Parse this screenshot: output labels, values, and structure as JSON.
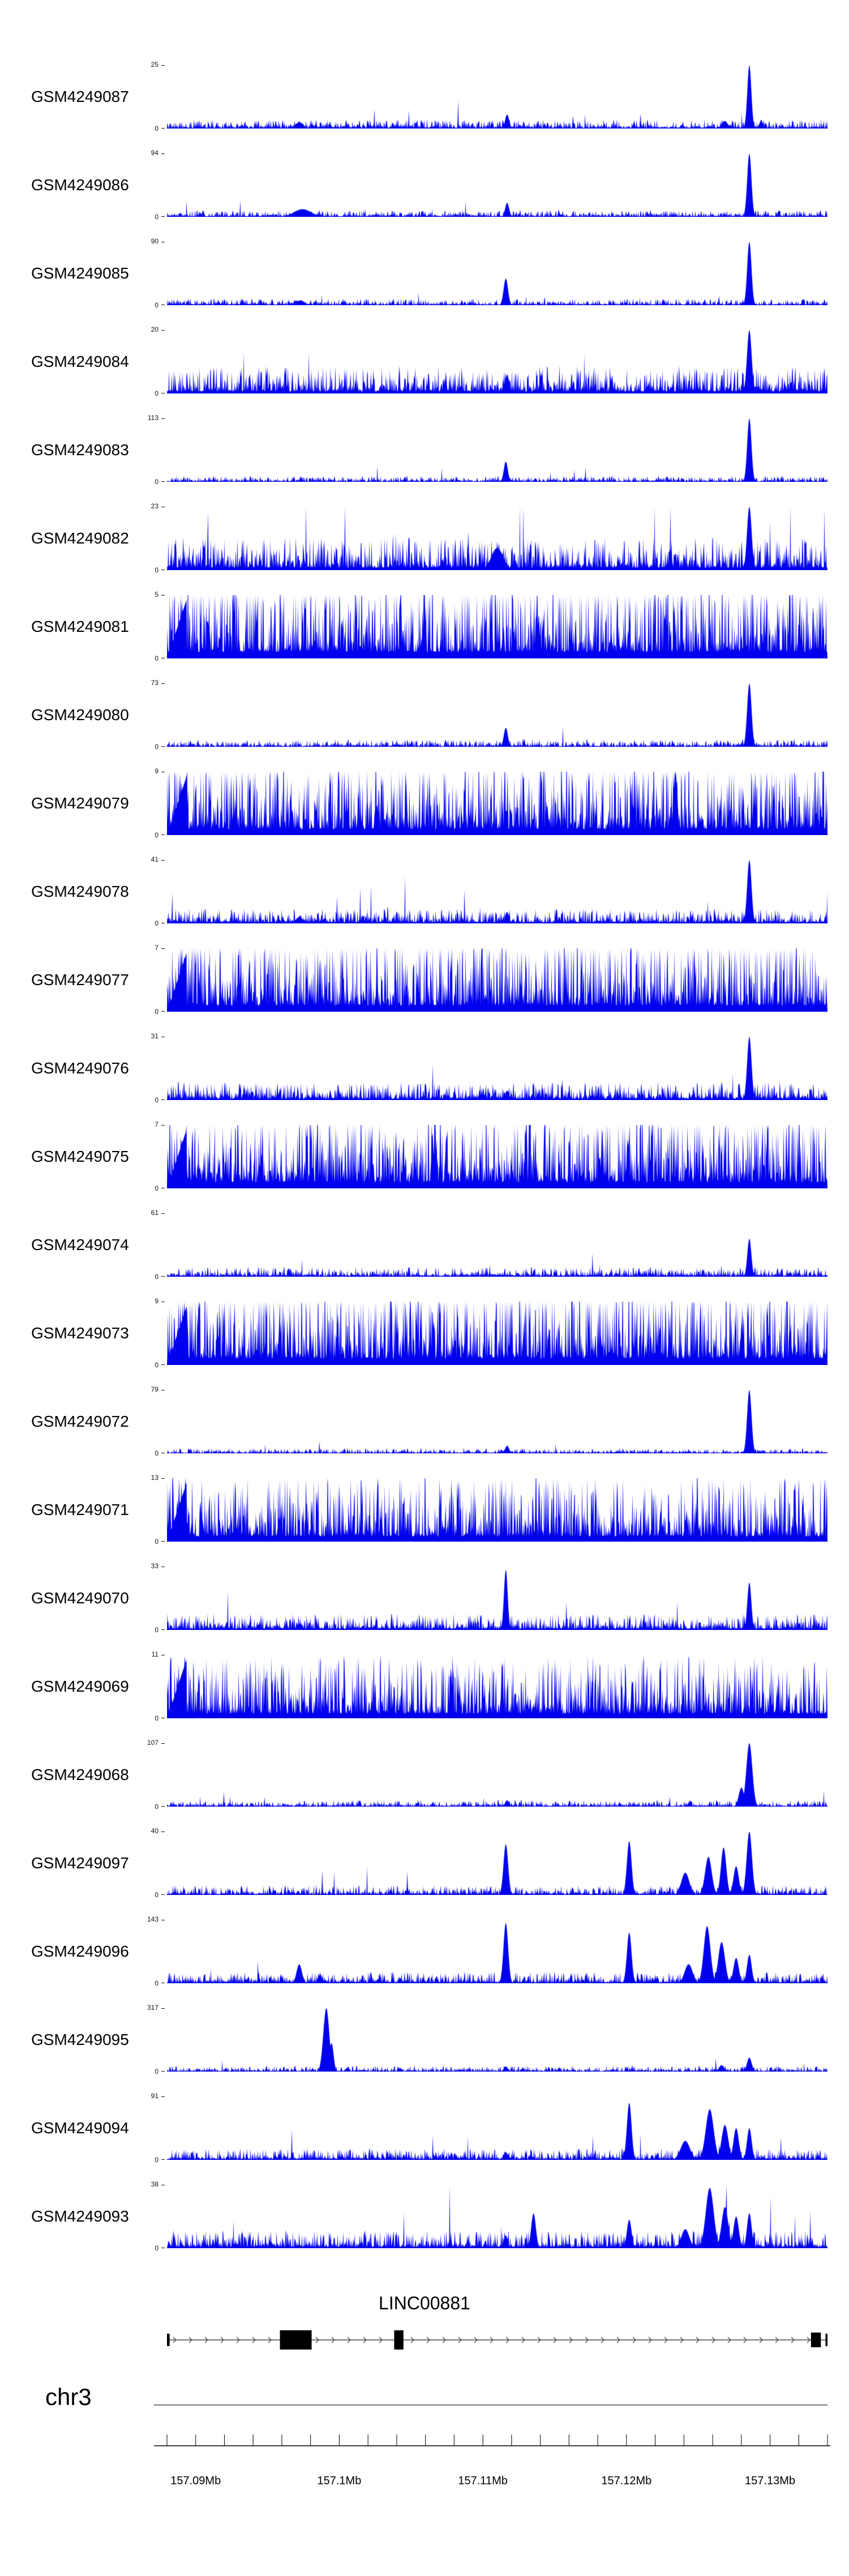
{
  "figure": {
    "background": "#ffffff",
    "signal_color": "#0000ee",
    "gene_color": "#000000",
    "gene_line_color": "#4a4a4a",
    "axis_color": "#000000"
  },
  "chart_data": {
    "type": "area",
    "title": "",
    "description": "Genome browser multi-sample coverage tracks over chr3:157.088-157.134Mb around LINC00881. Each track is a filled blue coverage signal with its own y-axis maximum; peaks are given as fractional x position (0-1 across the region), relative height (0-1 of track max) and gaussian width.",
    "region": {
      "chrom": "chr3",
      "start_mb": 157.088,
      "end_mb": 157.134,
      "unit": "Mb"
    },
    "gene": {
      "title": "LINC00881",
      "strand": "+",
      "exons": [
        {
          "x0": 0.0,
          "x1": 0.004,
          "h": 22
        },
        {
          "x0": 0.171,
          "x1": 0.219,
          "h": 34
        },
        {
          "x0": 0.344,
          "x1": 0.358,
          "h": 34
        },
        {
          "x0": 0.975,
          "x1": 0.99,
          "h": 26
        },
        {
          "x0": 0.997,
          "x1": 1.0,
          "h": 22
        }
      ]
    },
    "ruler": {
      "minor_step_mb": 0.002,
      "majors": [
        {
          "mb": 157.09,
          "label": "157.09Mb"
        },
        {
          "mb": 157.1,
          "label": "157.1Mb"
        },
        {
          "mb": 157.11,
          "label": "157.11Mb"
        },
        {
          "mb": 157.12,
          "label": "157.12Mb"
        },
        {
          "mb": 157.13,
          "label": "157.13Mb"
        }
      ]
    },
    "tracks": [
      {
        "name": "GSM4249087",
        "ymax": 25,
        "ymin": 0,
        "base": 0.055,
        "ramp": 0,
        "peaks": [
          {
            "x": 0.2,
            "h": 0.1,
            "w": 0.006
          },
          {
            "x": 0.515,
            "h": 0.22,
            "w": 0.003
          },
          {
            "x": 0.845,
            "h": 0.12,
            "w": 0.004
          },
          {
            "x": 0.882,
            "h": 1.0,
            "w": 0.003
          },
          {
            "x": 0.9,
            "h": 0.12,
            "w": 0.003
          }
        ]
      },
      {
        "name": "GSM4249086",
        "ymax": 94,
        "ymin": 0,
        "base": 0.04,
        "ramp": 0,
        "peaks": [
          {
            "x": 0.205,
            "h": 0.12,
            "w": 0.013
          },
          {
            "x": 0.515,
            "h": 0.22,
            "w": 0.003
          },
          {
            "x": 0.882,
            "h": 1.0,
            "w": 0.0032
          }
        ]
      },
      {
        "name": "GSM4249085",
        "ymax": 90,
        "ymin": 0,
        "base": 0.04,
        "ramp": 0,
        "peaks": [
          {
            "x": 0.2,
            "h": 0.07,
            "w": 0.008
          },
          {
            "x": 0.513,
            "h": 0.42,
            "w": 0.0033
          },
          {
            "x": 0.882,
            "h": 1.0,
            "w": 0.0032
          }
        ]
      },
      {
        "name": "GSM4249084",
        "ymax": 20,
        "ymin": 0,
        "base": 0.17,
        "ramp": 0,
        "peaks": [
          {
            "x": 0.515,
            "h": 0.3,
            "w": 0.003
          },
          {
            "x": 0.882,
            "h": 1.0,
            "w": 0.0035
          }
        ]
      },
      {
        "name": "GSM4249083",
        "ymax": 113,
        "ymin": 0,
        "base": 0.035,
        "ramp": 0,
        "peaks": [
          {
            "x": 0.513,
            "h": 0.32,
            "w": 0.003
          },
          {
            "x": 0.882,
            "h": 1.0,
            "w": 0.0032
          }
        ]
      },
      {
        "name": "GSM4249082",
        "ymax": 23,
        "ymin": 0,
        "base": 0.2,
        "ramp": 0,
        "peaks": [
          {
            "x": 0.5,
            "h": 0.35,
            "w": 0.009
          },
          {
            "x": 0.882,
            "h": 1.0,
            "w": 0.0035
          }
        ]
      },
      {
        "name": "GSM4249081",
        "ymax": 5,
        "ymin": 0,
        "base": 0.52,
        "ramp": 1,
        "peaks": []
      },
      {
        "name": "GSM4249080",
        "ymax": 73,
        "ymin": 0,
        "base": 0.045,
        "ramp": 0,
        "peaks": [
          {
            "x": 0.513,
            "h": 0.3,
            "w": 0.003
          },
          {
            "x": 0.882,
            "h": 1.0,
            "w": 0.0033
          }
        ]
      },
      {
        "name": "GSM4249079",
        "ymax": 9,
        "ymin": 0,
        "base": 0.48,
        "ramp": 1,
        "peaks": [
          {
            "x": 0.77,
            "h": 1.0,
            "w": 0.003
          }
        ]
      },
      {
        "name": "GSM4249078",
        "ymax": 41,
        "ymin": 0,
        "base": 0.09,
        "ramp": 0,
        "peaks": [
          {
            "x": 0.2,
            "h": 0.1,
            "w": 0.005
          },
          {
            "x": 0.515,
            "h": 0.18,
            "w": 0.003
          },
          {
            "x": 0.882,
            "h": 1.0,
            "w": 0.0033
          }
        ]
      },
      {
        "name": "GSM4249077",
        "ymax": 7,
        "ymin": 0,
        "base": 0.5,
        "ramp": 1,
        "peaks": []
      },
      {
        "name": "GSM4249076",
        "ymax": 31,
        "ymin": 0,
        "base": 0.11,
        "ramp": 0,
        "peaks": [
          {
            "x": 0.515,
            "h": 0.15,
            "w": 0.003
          },
          {
            "x": 0.882,
            "h": 1.0,
            "w": 0.0033
          }
        ]
      },
      {
        "name": "GSM4249075",
        "ymax": 7,
        "ymin": 0,
        "base": 0.5,
        "ramp": 1,
        "peaks": []
      },
      {
        "name": "GSM4249074",
        "ymax": 61,
        "ymin": 0,
        "base": 0.06,
        "ramp": 0,
        "peaks": [
          {
            "x": 0.882,
            "h": 0.6,
            "w": 0.003
          }
        ]
      },
      {
        "name": "GSM4249073",
        "ymax": 9,
        "ymin": 0,
        "base": 0.53,
        "ramp": 1,
        "peaks": []
      },
      {
        "name": "GSM4249072",
        "ymax": 79,
        "ymin": 0,
        "base": 0.03,
        "ramp": 0,
        "peaks": [
          {
            "x": 0.515,
            "h": 0.12,
            "w": 0.003
          },
          {
            "x": 0.882,
            "h": 1.0,
            "w": 0.0033
          }
        ]
      },
      {
        "name": "GSM4249071",
        "ymax": 13,
        "ymin": 0,
        "base": 0.42,
        "ramp": 1,
        "peaks": []
      },
      {
        "name": "GSM4249070",
        "ymax": 33,
        "ymin": 0,
        "base": 0.1,
        "ramp": 0,
        "peaks": [
          {
            "x": 0.2,
            "h": 0.1,
            "w": 0.004
          },
          {
            "x": 0.513,
            "h": 0.95,
            "w": 0.0028
          },
          {
            "x": 0.882,
            "h": 0.75,
            "w": 0.003
          }
        ]
      },
      {
        "name": "GSM4249069",
        "ymax": 11,
        "ymin": 0,
        "base": 0.38,
        "ramp": 1,
        "peaks": []
      },
      {
        "name": "GSM4249068",
        "ymax": 107,
        "ymin": 0,
        "base": 0.04,
        "ramp": 0,
        "peaks": [
          {
            "x": 0.515,
            "h": 0.1,
            "w": 0.003
          },
          {
            "x": 0.87,
            "h": 0.3,
            "w": 0.004
          },
          {
            "x": 0.882,
            "h": 1.0,
            "w": 0.0045
          }
        ]
      },
      {
        "name": "GSM4249097",
        "ymax": 40,
        "ymin": 0,
        "base": 0.06,
        "ramp": 0,
        "peaks": [
          {
            "x": 0.513,
            "h": 0.8,
            "w": 0.0035
          },
          {
            "x": 0.7,
            "h": 0.85,
            "w": 0.0035
          },
          {
            "x": 0.785,
            "h": 0.35,
            "w": 0.006
          },
          {
            "x": 0.82,
            "h": 0.6,
            "w": 0.005
          },
          {
            "x": 0.843,
            "h": 0.75,
            "w": 0.004
          },
          {
            "x": 0.862,
            "h": 0.45,
            "w": 0.004
          },
          {
            "x": 0.882,
            "h": 1.0,
            "w": 0.004
          }
        ]
      },
      {
        "name": "GSM4249096",
        "ymax": 143,
        "ymin": 0,
        "base": 0.07,
        "ramp": 0,
        "peaks": [
          {
            "x": 0.2,
            "h": 0.3,
            "w": 0.004
          },
          {
            "x": 0.513,
            "h": 0.95,
            "w": 0.0035
          },
          {
            "x": 0.7,
            "h": 0.8,
            "w": 0.0035
          },
          {
            "x": 0.79,
            "h": 0.3,
            "w": 0.006
          },
          {
            "x": 0.818,
            "h": 0.9,
            "w": 0.005
          },
          {
            "x": 0.84,
            "h": 0.65,
            "w": 0.005
          },
          {
            "x": 0.862,
            "h": 0.4,
            "w": 0.004
          },
          {
            "x": 0.882,
            "h": 0.45,
            "w": 0.0035
          }
        ]
      },
      {
        "name": "GSM4249095",
        "ymax": 317,
        "ymin": 0,
        "base": 0.035,
        "ramp": 0,
        "peaks": [
          {
            "x": 0.241,
            "h": 1.0,
            "w": 0.0045
          },
          {
            "x": 0.249,
            "h": 0.45,
            "w": 0.003
          },
          {
            "x": 0.513,
            "h": 0.08,
            "w": 0.003
          },
          {
            "x": 0.84,
            "h": 0.1,
            "w": 0.004
          },
          {
            "x": 0.882,
            "h": 0.22,
            "w": 0.0035
          }
        ]
      },
      {
        "name": "GSM4249094",
        "ymax": 91,
        "ymin": 0,
        "base": 0.07,
        "ramp": 0,
        "peaks": [
          {
            "x": 0.513,
            "h": 0.12,
            "w": 0.003
          },
          {
            "x": 0.7,
            "h": 0.9,
            "w": 0.0035
          },
          {
            "x": 0.785,
            "h": 0.3,
            "w": 0.007
          },
          {
            "x": 0.822,
            "h": 0.8,
            "w": 0.006
          },
          {
            "x": 0.845,
            "h": 0.55,
            "w": 0.005
          },
          {
            "x": 0.862,
            "h": 0.5,
            "w": 0.004
          },
          {
            "x": 0.882,
            "h": 0.5,
            "w": 0.0035
          }
        ]
      },
      {
        "name": "GSM4249093",
        "ymax": 38,
        "ymin": 0,
        "base": 0.11,
        "ramp": 0,
        "peaks": [
          {
            "x": 0.513,
            "h": 0.2,
            "w": 0.003
          },
          {
            "x": 0.555,
            "h": 0.55,
            "w": 0.0035
          },
          {
            "x": 0.7,
            "h": 0.45,
            "w": 0.0035
          },
          {
            "x": 0.785,
            "h": 0.3,
            "w": 0.006
          },
          {
            "x": 0.822,
            "h": 0.95,
            "w": 0.006
          },
          {
            "x": 0.845,
            "h": 0.65,
            "w": 0.005
          },
          {
            "x": 0.862,
            "h": 0.5,
            "w": 0.004
          },
          {
            "x": 0.882,
            "h": 0.55,
            "w": 0.0035
          }
        ]
      }
    ]
  }
}
